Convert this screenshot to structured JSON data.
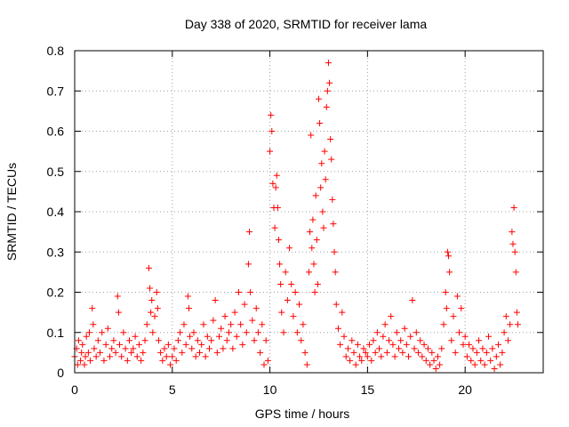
{
  "chart_data": {
    "type": "scatter",
    "title": "Day 338 of 2020, SRMTID for receiver lama",
    "xlabel": "GPS time / hours",
    "ylabel": "SRMTID / TECUs",
    "xlim": [
      0,
      24
    ],
    "ylim": [
      0,
      0.8
    ],
    "x_ticks": [
      0,
      5,
      10,
      15,
      20
    ],
    "y_ticks": [
      0,
      0.1,
      0.2,
      0.3,
      0.4,
      0.5,
      0.6,
      0.7,
      0.8
    ],
    "x_tick_labels": [
      "0",
      "5",
      "10",
      "15",
      "20"
    ],
    "y_tick_labels": [
      "0",
      "0.1",
      "0.2",
      "0.3",
      "0.4",
      "0.5",
      "0.6",
      "0.7",
      "0.8"
    ],
    "grid": true,
    "marker": "+",
    "colors": {
      "marker": "#ff0000",
      "grid": "#a0a0a0",
      "axis": "#000000"
    },
    "series": [
      {
        "name": "SRMTID",
        "points": [
          [
            0.0,
            0.04
          ],
          [
            0.1,
            0.06
          ],
          [
            0.15,
            0.02
          ],
          [
            0.2,
            0.08
          ],
          [
            0.3,
            0.03
          ],
          [
            0.35,
            0.05
          ],
          [
            0.4,
            0.07
          ],
          [
            0.5,
            0.02
          ],
          [
            0.55,
            0.04
          ],
          [
            0.6,
            0.09
          ],
          [
            0.7,
            0.05
          ],
          [
            0.75,
            0.1
          ],
          [
            0.8,
            0.03
          ],
          [
            0.9,
            0.16
          ],
          [
            0.95,
            0.12
          ],
          [
            1.0,
            0.06
          ],
          [
            1.1,
            0.04
          ],
          [
            1.2,
            0.08
          ],
          [
            1.3,
            0.05
          ],
          [
            1.4,
            0.1
          ],
          [
            1.5,
            0.03
          ],
          [
            1.6,
            0.07
          ],
          [
            1.7,
            0.11
          ],
          [
            1.8,
            0.04
          ],
          [
            1.9,
            0.06
          ],
          [
            2.0,
            0.08
          ],
          [
            2.1,
            0.05
          ],
          [
            2.2,
            0.19
          ],
          [
            2.25,
            0.15
          ],
          [
            2.3,
            0.07
          ],
          [
            2.4,
            0.04
          ],
          [
            2.5,
            0.1
          ],
          [
            2.6,
            0.06
          ],
          [
            2.7,
            0.03
          ],
          [
            2.8,
            0.08
          ],
          [
            2.9,
            0.05
          ],
          [
            3.0,
            0.06
          ],
          [
            3.1,
            0.09
          ],
          [
            3.2,
            0.04
          ],
          [
            3.3,
            0.07
          ],
          [
            3.4,
            0.03
          ],
          [
            3.5,
            0.05
          ],
          [
            3.6,
            0.08
          ],
          [
            3.7,
            0.12
          ],
          [
            3.8,
            0.26
          ],
          [
            3.85,
            0.21
          ],
          [
            3.9,
            0.15
          ],
          [
            3.95,
            0.18
          ],
          [
            4.0,
            0.1
          ],
          [
            4.1,
            0.14
          ],
          [
            4.2,
            0.2
          ],
          [
            4.25,
            0.16
          ],
          [
            4.3,
            0.08
          ],
          [
            4.4,
            0.05
          ],
          [
            4.5,
            0.03
          ],
          [
            4.6,
            0.06
          ],
          [
            4.7,
            0.04
          ],
          [
            4.8,
            0.07
          ],
          [
            4.9,
            0.02
          ],
          [
            5.0,
            0.04
          ],
          [
            5.1,
            0.06
          ],
          [
            5.2,
            0.03
          ],
          [
            5.3,
            0.08
          ],
          [
            5.4,
            0.1
          ],
          [
            5.5,
            0.05
          ],
          [
            5.6,
            0.12
          ],
          [
            5.7,
            0.07
          ],
          [
            5.8,
            0.19
          ],
          [
            5.85,
            0.16
          ],
          [
            5.9,
            0.09
          ],
          [
            6.0,
            0.06
          ],
          [
            6.1,
            0.1
          ],
          [
            6.2,
            0.04
          ],
          [
            6.3,
            0.08
          ],
          [
            6.4,
            0.05
          ],
          [
            6.5,
            0.07
          ],
          [
            6.6,
            0.12
          ],
          [
            6.7,
            0.04
          ],
          [
            6.8,
            0.09
          ],
          [
            6.9,
            0.06
          ],
          [
            7.0,
            0.08
          ],
          [
            7.1,
            0.13
          ],
          [
            7.2,
            0.18
          ],
          [
            7.3,
            0.05
          ],
          [
            7.4,
            0.09
          ],
          [
            7.5,
            0.11
          ],
          [
            7.6,
            0.06
          ],
          [
            7.7,
            0.14
          ],
          [
            7.8,
            0.08
          ],
          [
            7.9,
            0.1
          ],
          [
            8.0,
            0.12
          ],
          [
            8.1,
            0.06
          ],
          [
            8.2,
            0.15
          ],
          [
            8.3,
            0.09
          ],
          [
            8.4,
            0.2
          ],
          [
            8.5,
            0.12
          ],
          [
            8.6,
            0.07
          ],
          [
            8.7,
            0.17
          ],
          [
            8.8,
            0.1
          ],
          [
            8.9,
            0.27
          ],
          [
            8.95,
            0.35
          ],
          [
            9.0,
            0.2
          ],
          [
            9.1,
            0.13
          ],
          [
            9.2,
            0.08
          ],
          [
            9.3,
            0.16
          ],
          [
            9.4,
            0.1
          ],
          [
            9.5,
            0.05
          ],
          [
            9.6,
            0.12
          ],
          [
            9.7,
            0.02
          ],
          [
            9.8,
            0.08
          ],
          [
            9.9,
            0.03
          ],
          [
            10.0,
            0.55
          ],
          [
            10.05,
            0.64
          ],
          [
            10.1,
            0.6
          ],
          [
            10.15,
            0.47
          ],
          [
            10.2,
            0.41
          ],
          [
            10.25,
            0.36
          ],
          [
            10.3,
            0.46
          ],
          [
            10.35,
            0.49
          ],
          [
            10.4,
            0.41
          ],
          [
            10.45,
            0.33
          ],
          [
            10.5,
            0.27
          ],
          [
            10.55,
            0.22
          ],
          [
            10.6,
            0.15
          ],
          [
            10.7,
            0.1
          ],
          [
            10.8,
            0.25
          ],
          [
            10.9,
            0.18
          ],
          [
            11.0,
            0.31
          ],
          [
            11.1,
            0.22
          ],
          [
            11.2,
            0.14
          ],
          [
            11.3,
            0.2
          ],
          [
            11.4,
            0.1
          ],
          [
            11.5,
            0.17
          ],
          [
            11.6,
            0.08
          ],
          [
            11.7,
            0.12
          ],
          [
            11.8,
            0.05
          ],
          [
            11.9,
            0.02
          ],
          [
            12.0,
            0.25
          ],
          [
            12.05,
            0.35
          ],
          [
            12.1,
            0.59
          ],
          [
            12.15,
            0.31
          ],
          [
            12.2,
            0.38
          ],
          [
            12.25,
            0.27
          ],
          [
            12.3,
            0.2
          ],
          [
            12.35,
            0.44
          ],
          [
            12.4,
            0.33
          ],
          [
            12.45,
            0.22
          ],
          [
            12.5,
            0.68
          ],
          [
            12.55,
            0.62
          ],
          [
            12.6,
            0.46
          ],
          [
            12.65,
            0.52
          ],
          [
            12.7,
            0.4
          ],
          [
            12.75,
            0.36
          ],
          [
            12.8,
            0.55
          ],
          [
            12.85,
            0.48
          ],
          [
            12.9,
            0.66
          ],
          [
            12.95,
            0.7
          ],
          [
            13.0,
            0.77
          ],
          [
            13.05,
            0.72
          ],
          [
            13.1,
            0.58
          ],
          [
            13.15,
            0.53
          ],
          [
            13.2,
            0.43
          ],
          [
            13.25,
            0.37
          ],
          [
            13.3,
            0.3
          ],
          [
            13.35,
            0.25
          ],
          [
            13.4,
            0.17
          ],
          [
            13.5,
            0.11
          ],
          [
            13.6,
            0.07
          ],
          [
            13.7,
            0.15
          ],
          [
            13.8,
            0.09
          ],
          [
            13.9,
            0.04
          ],
          [
            14.0,
            0.06
          ],
          [
            14.1,
            0.03
          ],
          [
            14.2,
            0.08
          ],
          [
            14.3,
            0.05
          ],
          [
            14.4,
            0.02
          ],
          [
            14.5,
            0.07
          ],
          [
            14.6,
            0.04
          ],
          [
            14.7,
            0.03
          ],
          [
            14.8,
            0.06
          ],
          [
            14.9,
            0.05
          ],
          [
            15.0,
            0.04
          ],
          [
            15.1,
            0.07
          ],
          [
            15.2,
            0.03
          ],
          [
            15.3,
            0.08
          ],
          [
            15.4,
            0.05
          ],
          [
            15.5,
            0.1
          ],
          [
            15.6,
            0.06
          ],
          [
            15.7,
            0.04
          ],
          [
            15.8,
            0.09
          ],
          [
            15.9,
            0.12
          ],
          [
            16.0,
            0.05
          ],
          [
            16.1,
            0.08
          ],
          [
            16.2,
            0.14
          ],
          [
            16.3,
            0.07
          ],
          [
            16.4,
            0.04
          ],
          [
            16.5,
            0.1
          ],
          [
            16.6,
            0.06
          ],
          [
            16.7,
            0.08
          ],
          [
            16.8,
            0.05
          ],
          [
            16.9,
            0.11
          ],
          [
            17.0,
            0.07
          ],
          [
            17.1,
            0.04
          ],
          [
            17.2,
            0.09
          ],
          [
            17.3,
            0.18
          ],
          [
            17.4,
            0.06
          ],
          [
            17.5,
            0.1
          ],
          [
            17.6,
            0.05
          ],
          [
            17.7,
            0.08
          ],
          [
            17.8,
            0.04
          ],
          [
            17.9,
            0.07
          ],
          [
            18.0,
            0.03
          ],
          [
            18.1,
            0.06
          ],
          [
            18.2,
            0.02
          ],
          [
            18.3,
            0.05
          ],
          [
            18.4,
            0.03
          ],
          [
            18.5,
            0.01
          ],
          [
            18.6,
            0.04
          ],
          [
            18.7,
            0.02
          ],
          [
            18.8,
            0.06
          ],
          [
            18.9,
            0.12
          ],
          [
            19.0,
            0.2
          ],
          [
            19.05,
            0.16
          ],
          [
            19.1,
            0.3
          ],
          [
            19.15,
            0.29
          ],
          [
            19.2,
            0.25
          ],
          [
            19.3,
            0.08
          ],
          [
            19.4,
            0.14
          ],
          [
            19.5,
            0.05
          ],
          [
            19.6,
            0.19
          ],
          [
            19.7,
            0.1
          ],
          [
            19.8,
            0.16
          ],
          [
            19.9,
            0.07
          ],
          [
            20.0,
            0.09
          ],
          [
            20.1,
            0.04
          ],
          [
            20.2,
            0.07
          ],
          [
            20.3,
            0.03
          ],
          [
            20.4,
            0.06
          ],
          [
            20.5,
            0.02
          ],
          [
            20.6,
            0.05
          ],
          [
            20.7,
            0.08
          ],
          [
            20.8,
            0.03
          ],
          [
            20.9,
            0.06
          ],
          [
            21.0,
            0.02
          ],
          [
            21.1,
            0.05
          ],
          [
            21.2,
            0.09
          ],
          [
            21.3,
            0.03
          ],
          [
            21.4,
            0.06
          ],
          [
            21.5,
            0.01
          ],
          [
            21.6,
            0.04
          ],
          [
            21.7,
            0.07
          ],
          [
            21.8,
            0.02
          ],
          [
            21.9,
            0.05
          ],
          [
            22.0,
            0.1
          ],
          [
            22.1,
            0.14
          ],
          [
            22.2,
            0.08
          ],
          [
            22.3,
            0.12
          ],
          [
            22.4,
            0.35
          ],
          [
            22.45,
            0.32
          ],
          [
            22.5,
            0.41
          ],
          [
            22.55,
            0.3
          ],
          [
            22.6,
            0.25
          ],
          [
            22.65,
            0.15
          ],
          [
            22.7,
            0.12
          ]
        ]
      }
    ]
  }
}
